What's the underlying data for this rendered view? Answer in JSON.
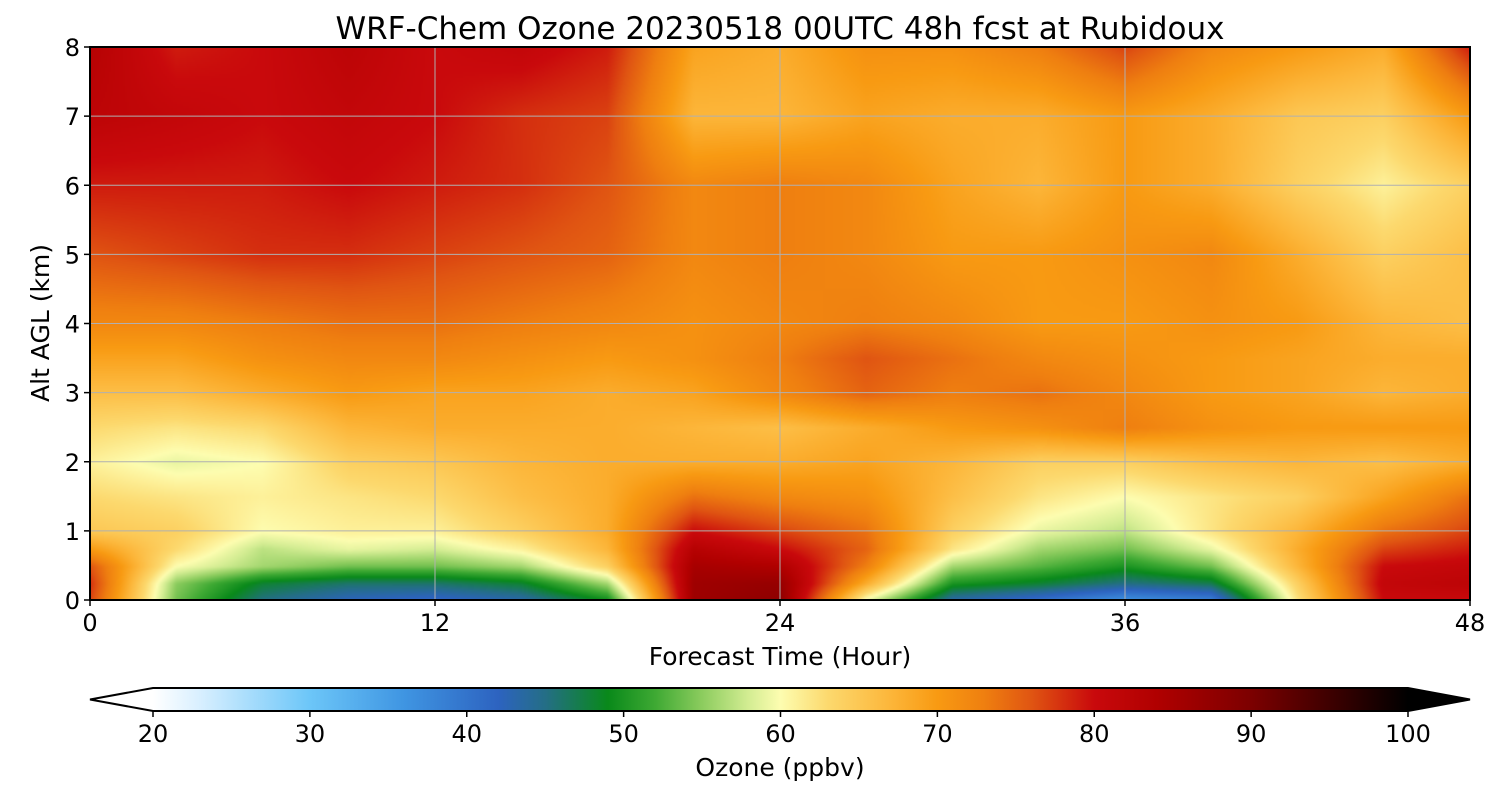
{
  "chart_data": {
    "type": "heatmap",
    "title": "WRF-Chem Ozone  20230518 00UTC 48h fcst at Rubidoux",
    "xlabel": "Forecast Time (Hour)",
    "ylabel": "Alt AGL (km)",
    "xlim": [
      0,
      48
    ],
    "ylim": [
      0,
      8
    ],
    "x_ticks": [
      "0",
      "12",
      "24",
      "36",
      "48"
    ],
    "y_ticks": [
      "0",
      "1",
      "2",
      "3",
      "4",
      "5",
      "6",
      "7",
      "8"
    ],
    "grid": true,
    "x": [
      0,
      3,
      6,
      9,
      12,
      15,
      18,
      21,
      24,
      27,
      30,
      33,
      36,
      39,
      42,
      45,
      48
    ],
    "y": [
      0,
      0.25,
      0.5,
      0.75,
      1.0,
      1.5,
      2.0,
      2.5,
      3.0,
      3.5,
      4.0,
      5.0,
      6.0,
      7.0,
      8.0
    ],
    "z": [
      [
        77,
        54,
        45,
        42,
        41,
        43,
        49,
        86,
        88,
        59,
        43,
        40,
        36,
        38,
        62,
        80,
        80
      ],
      [
        78,
        55,
        48,
        46,
        46,
        48,
        56,
        86,
        87,
        68,
        50,
        48,
        45,
        47,
        64,
        81,
        82
      ],
      [
        76,
        60,
        56,
        54,
        54,
        56,
        64,
        85,
        84,
        73,
        56,
        53,
        50,
        54,
        67,
        80,
        81
      ],
      [
        70,
        63,
        57,
        59,
        58,
        61,
        67,
        83,
        80,
        75,
        62,
        56,
        54,
        59,
        68,
        77,
        79
      ],
      [
        65,
        64,
        60,
        61,
        61,
        64,
        68,
        80,
        77,
        74,
        64,
        59,
        57,
        62,
        67,
        74,
        77
      ],
      [
        63,
        62,
        61,
        62,
        63,
        66,
        68,
        74,
        72,
        71,
        66,
        62,
        60,
        62,
        64,
        69,
        74
      ],
      [
        61,
        59,
        60,
        64,
        65,
        67,
        68,
        68,
        68,
        69,
        67,
        64,
        64,
        66,
        67,
        66,
        68
      ],
      [
        63,
        62,
        63,
        67,
        68,
        68,
        68,
        67,
        66,
        68,
        70,
        71,
        73,
        71,
        70,
        70,
        70
      ],
      [
        66,
        66,
        68,
        70,
        69,
        69,
        68,
        69,
        72,
        75,
        73,
        74,
        72,
        70,
        69,
        67,
        68
      ],
      [
        69,
        69,
        71,
        72,
        72,
        71,
        70,
        71,
        73,
        76,
        74,
        72,
        71,
        70,
        69,
        68,
        68
      ],
      [
        72,
        72,
        73,
        74,
        74,
        73,
        72,
        71,
        72,
        73,
        72,
        70,
        70,
        71,
        70,
        67,
        66
      ],
      [
        76,
        77,
        78,
        78,
        77,
        76,
        75,
        72,
        73,
        72,
        70,
        70,
        71,
        72,
        68,
        64,
        66
      ],
      [
        79,
        79,
        79,
        80,
        79,
        78,
        76,
        72,
        73,
        72,
        69,
        67,
        70,
        68,
        64,
        61,
        64
      ],
      [
        82,
        81,
        80,
        81,
        80,
        78,
        77,
        67,
        67,
        69,
        68,
        68,
        70,
        68,
        65,
        64,
        70
      ],
      [
        83,
        79,
        80,
        82,
        80,
        81,
        79,
        69,
        68,
        71,
        71,
        73,
        77,
        72,
        70,
        68,
        79
      ]
    ],
    "colorbar": {
      "label": "Ozone  (ppbv)",
      "min": 20,
      "max": 100,
      "ticks": [
        "20",
        "30",
        "40",
        "50",
        "60",
        "70",
        "80",
        "90",
        "100"
      ],
      "extend": "both",
      "stops": [
        {
          "v": 20,
          "c": "#ffffff"
        },
        {
          "v": 23,
          "c": "#d8efff"
        },
        {
          "v": 30,
          "c": "#6cc6f8"
        },
        {
          "v": 36,
          "c": "#3f95e2"
        },
        {
          "v": 42,
          "c": "#2d63c0"
        },
        {
          "v": 45,
          "c": "#246e86"
        },
        {
          "v": 49,
          "c": "#09891a"
        },
        {
          "v": 52,
          "c": "#3ea933"
        },
        {
          "v": 55,
          "c": "#8ccc5e"
        },
        {
          "v": 58,
          "c": "#d4ed93"
        },
        {
          "v": 60,
          "c": "#fdfdb0"
        },
        {
          "v": 63,
          "c": "#fcd96e"
        },
        {
          "v": 67,
          "c": "#fcb63a"
        },
        {
          "v": 70,
          "c": "#f89a12"
        },
        {
          "v": 73,
          "c": "#ef7f10"
        },
        {
          "v": 76,
          "c": "#e05512"
        },
        {
          "v": 80,
          "c": "#c9090c"
        },
        {
          "v": 84,
          "c": "#b00000"
        },
        {
          "v": 90,
          "c": "#7c0000"
        },
        {
          "v": 95,
          "c": "#3e0000"
        },
        {
          "v": 100,
          "c": "#000000"
        }
      ]
    }
  }
}
